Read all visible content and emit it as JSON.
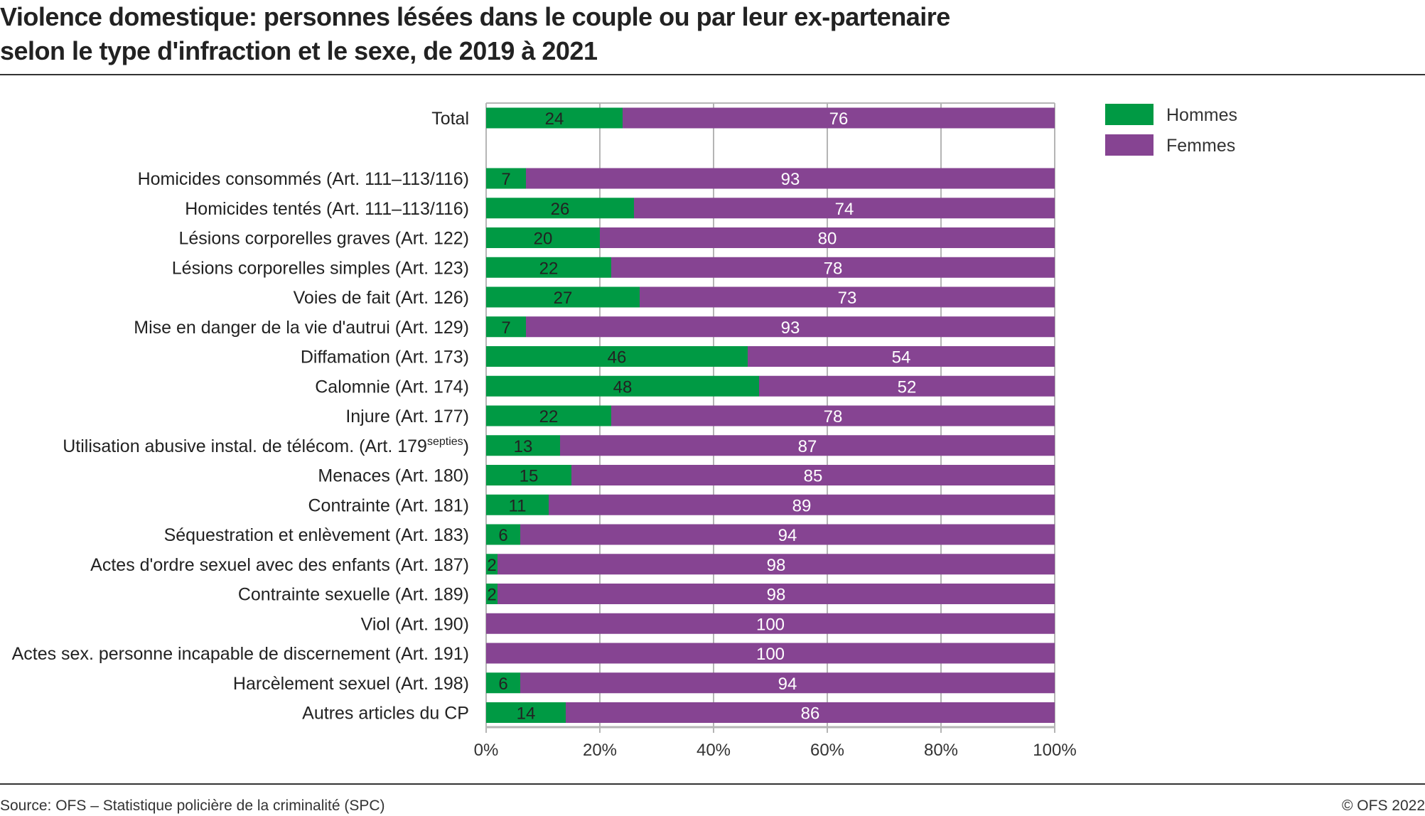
{
  "title_line1": "Violence domestique: personnes lésées dans le couple ou par leur ex-partenaire",
  "title_line2": "selon le type d'infraction et le sexe, de 2019 à 2021",
  "source": "Source: OFS – Statistique policière de la criminalité (SPC)",
  "copyright": "© OFS 2022",
  "chart_data": {
    "type": "bar",
    "orientation": "horizontal",
    "stacked": "100%",
    "title": "Violence domestique: personnes lésées dans le couple ou par leur ex-partenaire selon le type d'infraction et le sexe, de 2019 à 2021",
    "categories": [
      "Total",
      "Homicides consommés (Art. 111–113/116)",
      "Homicides tentés (Art. 111–113/116)",
      "Lésions corporelles graves (Art. 122)",
      "Lésions corporelles simples (Art. 123)",
      "Voies de fait (Art. 126)",
      "Mise en danger de la vie d'autrui (Art. 129)",
      "Diffamation (Art. 173)",
      "Calomnie (Art. 174)",
      "Injure (Art. 177)",
      "Utilisation abusive instal. de télécom. (Art. 179septies)",
      "Menaces (Art. 180)",
      "Contrainte (Art. 181)",
      "Séquestration et enlèvement  (Art. 183)",
      "Actes d'ordre sexuel avec des enfants (Art. 187)",
      "Contrainte sexuelle (Art. 189)",
      "Viol (Art. 190)",
      "Actes sex. personne incapable de discernement (Art. 191)",
      "Harcèlement sexuel (Art. 198)",
      "Autres articles du CP"
    ],
    "series": [
      {
        "name": "Hommes",
        "color": "#009a44",
        "values": [
          24,
          7,
          26,
          20,
          22,
          27,
          7,
          46,
          48,
          22,
          13,
          15,
          11,
          6,
          2,
          2,
          0,
          0,
          6,
          14
        ]
      },
      {
        "name": "Femmes",
        "color": "#864492",
        "values": [
          76,
          93,
          74,
          80,
          78,
          73,
          93,
          54,
          52,
          78,
          87,
          85,
          89,
          94,
          98,
          98,
          100,
          100,
          94,
          86
        ]
      }
    ],
    "xlim": [
      0,
      100
    ],
    "xticks": [
      "0%",
      "20%",
      "40%",
      "60%",
      "80%",
      "100%"
    ],
    "grid": true,
    "legend": "top-right"
  }
}
